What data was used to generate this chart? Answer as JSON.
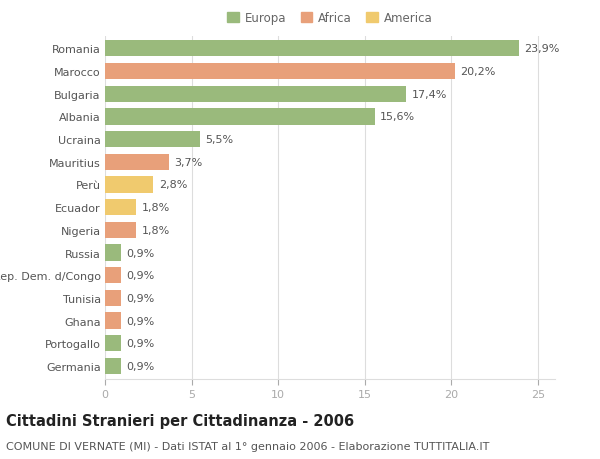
{
  "categories": [
    "Romania",
    "Marocco",
    "Bulgaria",
    "Albania",
    "Ucraina",
    "Mauritius",
    "Perù",
    "Ecuador",
    "Nigeria",
    "Russia",
    "Rep. Dem. d/Congo",
    "Tunisia",
    "Ghana",
    "Portogallo",
    "Germania"
  ],
  "values": [
    23.9,
    20.2,
    17.4,
    15.6,
    5.5,
    3.7,
    2.8,
    1.8,
    1.8,
    0.9,
    0.9,
    0.9,
    0.9,
    0.9,
    0.9
  ],
  "labels": [
    "23,9%",
    "20,2%",
    "17,4%",
    "15,6%",
    "5,5%",
    "3,7%",
    "2,8%",
    "1,8%",
    "1,8%",
    "0,9%",
    "0,9%",
    "0,9%",
    "0,9%",
    "0,9%",
    "0,9%"
  ],
  "continents": [
    "Europa",
    "Africa",
    "Europa",
    "Europa",
    "Europa",
    "Africa",
    "America",
    "America",
    "Africa",
    "Europa",
    "Africa",
    "Africa",
    "Africa",
    "Europa",
    "Europa"
  ],
  "colors": {
    "Europa": "#9aba7c",
    "Africa": "#e8a07a",
    "America": "#f0ca6e"
  },
  "legend_order": [
    "Europa",
    "Africa",
    "America"
  ],
  "title": "Cittadini Stranieri per Cittadinanza - 2006",
  "subtitle": "COMUNE DI VERNATE (MI) - Dati ISTAT al 1° gennaio 2006 - Elaborazione TUTTITALIA.IT",
  "xlim": [
    0,
    26
  ],
  "xticks": [
    0,
    5,
    10,
    15,
    20,
    25
  ],
  "background_color": "#ffffff",
  "grid_color": "#dddddd",
  "bar_height": 0.72,
  "title_fontsize": 10.5,
  "subtitle_fontsize": 8,
  "tick_fontsize": 8,
  "label_fontsize": 8,
  "legend_fontsize": 8.5
}
